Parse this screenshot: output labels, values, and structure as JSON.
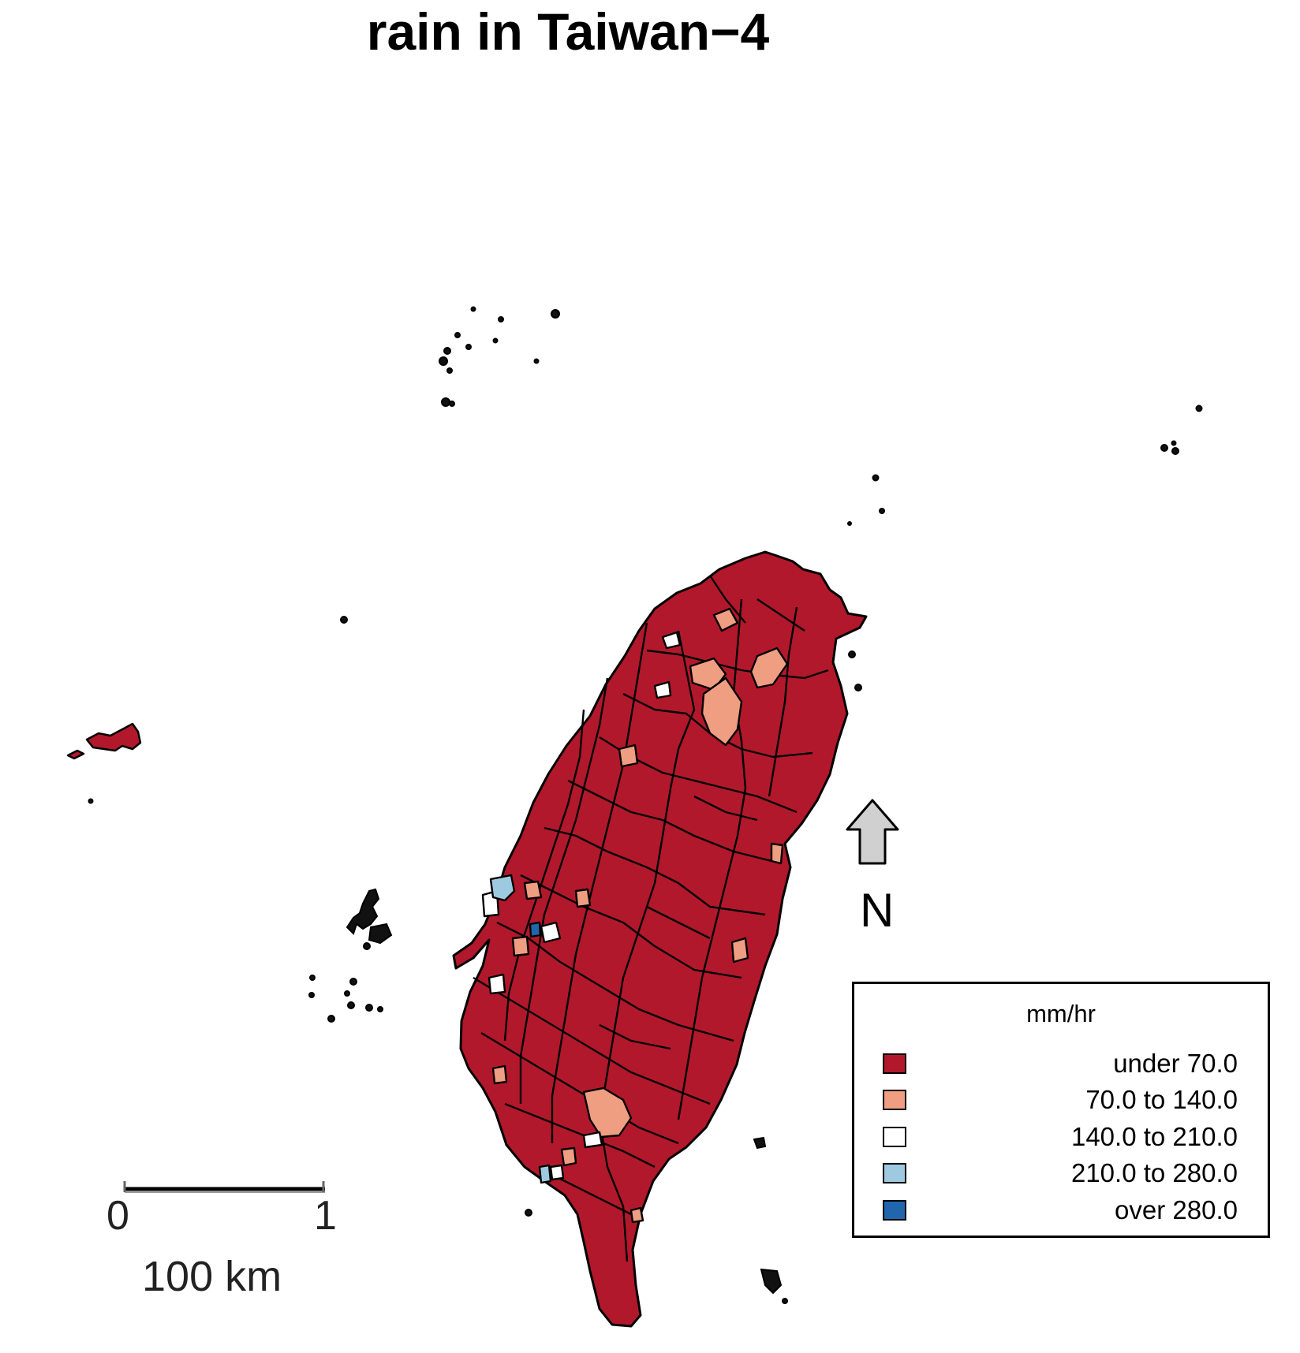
{
  "title": "rain in Taiwan−4",
  "north_label": "N",
  "scale_bar": {
    "start_label": "0",
    "end_label": "1",
    "distance_label": "100 km"
  },
  "legend": {
    "title": "mm/hr",
    "items": [
      {
        "label": "under 70.0",
        "color": "#b2182b"
      },
      {
        "label": "70.0 to 140.0",
        "color": "#ef9e82"
      },
      {
        "label": "140.0 to 210.0",
        "color": "#ffffff"
      },
      {
        "label": "210.0 to 280.0",
        "color": "#9ecae1"
      },
      {
        "label": "over 280.0",
        "color": "#2166ac"
      }
    ]
  },
  "colors": {
    "region_fill": "#b2182b",
    "boundary": "#000000",
    "arrow_fill": "#d0d0d0"
  }
}
